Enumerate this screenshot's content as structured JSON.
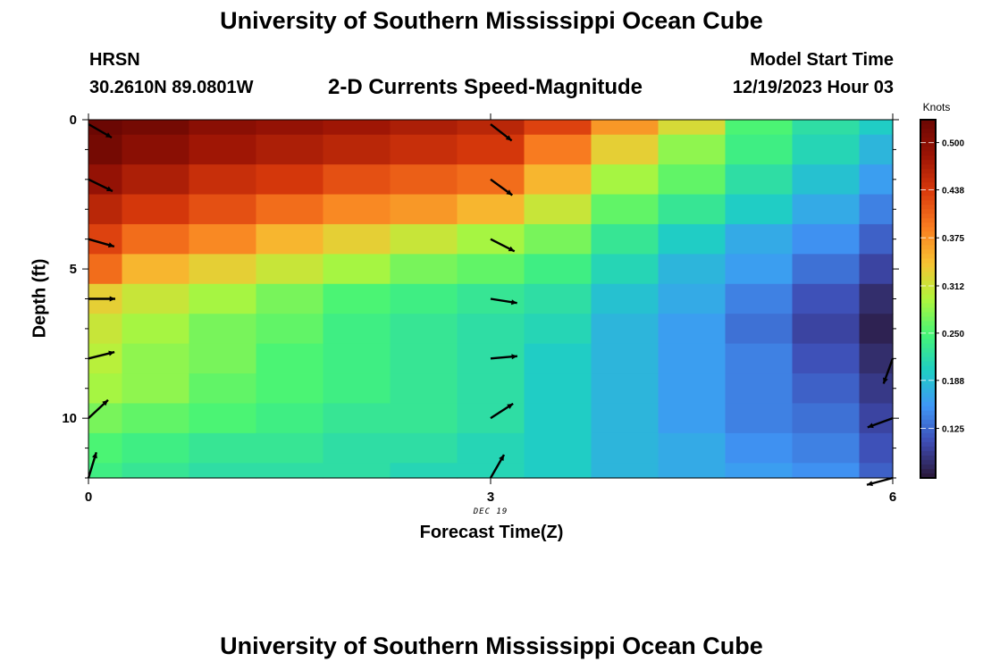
{
  "header": {
    "title": "University of Southern Mississippi Ocean Cube",
    "station": "HRSN",
    "coords": "30.2610N  89.0801W",
    "plot_title": "2-D Currents Speed-Magnitude",
    "model_label": "Model Start Time",
    "model_time": "12/19/2023 Hour 03"
  },
  "footer": {
    "title": "University of Southern Mississippi Ocean Cube"
  },
  "chart_data": {
    "type": "heatmap",
    "title": "2-D Currents Speed-Magnitude",
    "xlabel": "Forecast Time(Z)",
    "ylabel": "Depth (ft)",
    "x_secondary_label": "DEC 19",
    "xlim": [
      0,
      6
    ],
    "ylim": [
      12,
      0
    ],
    "xticks": [
      0,
      3,
      6
    ],
    "yticks": [
      0,
      5,
      10
    ],
    "x": [
      0,
      0.5,
      1,
      1.5,
      2,
      2.5,
      3,
      3.5,
      4,
      4.5,
      5,
      5.5,
      6
    ],
    "y": [
      0,
      1,
      2,
      3,
      4,
      5,
      6,
      7,
      8,
      9,
      10,
      11,
      12
    ],
    "z": [
      [
        0.54,
        0.52,
        0.5,
        0.49,
        0.48,
        0.47,
        0.46,
        0.43,
        0.37,
        0.32,
        0.25,
        0.22,
        0.2
      ],
      [
        0.52,
        0.5,
        0.48,
        0.47,
        0.46,
        0.45,
        0.44,
        0.39,
        0.33,
        0.28,
        0.24,
        0.21,
        0.18
      ],
      [
        0.49,
        0.47,
        0.45,
        0.44,
        0.42,
        0.41,
        0.4,
        0.35,
        0.29,
        0.26,
        0.22,
        0.19,
        0.16
      ],
      [
        0.46,
        0.44,
        0.42,
        0.4,
        0.38,
        0.37,
        0.35,
        0.31,
        0.26,
        0.23,
        0.2,
        0.17,
        0.14
      ],
      [
        0.43,
        0.4,
        0.38,
        0.35,
        0.33,
        0.31,
        0.29,
        0.27,
        0.23,
        0.2,
        0.17,
        0.15,
        0.12
      ],
      [
        0.4,
        0.35,
        0.33,
        0.31,
        0.29,
        0.27,
        0.26,
        0.24,
        0.21,
        0.18,
        0.16,
        0.13,
        0.1
      ],
      [
        0.33,
        0.31,
        0.29,
        0.27,
        0.25,
        0.24,
        0.23,
        0.22,
        0.19,
        0.17,
        0.14,
        0.11,
        0.08
      ],
      [
        0.31,
        0.29,
        0.27,
        0.26,
        0.24,
        0.23,
        0.22,
        0.21,
        0.18,
        0.16,
        0.13,
        0.1,
        0.07
      ],
      [
        0.3,
        0.28,
        0.27,
        0.25,
        0.24,
        0.23,
        0.22,
        0.2,
        0.18,
        0.16,
        0.14,
        0.11,
        0.08
      ],
      [
        0.29,
        0.28,
        0.26,
        0.25,
        0.24,
        0.23,
        0.22,
        0.2,
        0.18,
        0.16,
        0.14,
        0.12,
        0.09
      ],
      [
        0.27,
        0.26,
        0.25,
        0.24,
        0.23,
        0.23,
        0.22,
        0.2,
        0.18,
        0.16,
        0.14,
        0.13,
        0.1
      ],
      [
        0.25,
        0.24,
        0.23,
        0.23,
        0.22,
        0.22,
        0.21,
        0.2,
        0.18,
        0.17,
        0.15,
        0.14,
        0.11
      ],
      [
        0.24,
        0.23,
        0.22,
        0.22,
        0.22,
        0.21,
        0.21,
        0.2,
        0.18,
        0.17,
        0.16,
        0.15,
        0.12
      ]
    ],
    "vectors": [
      {
        "x": 0,
        "y": 0.15,
        "dir": 30
      },
      {
        "x": 0,
        "y": 2.0,
        "dir": 26
      },
      {
        "x": 0,
        "y": 4.0,
        "dir": 16
      },
      {
        "x": 0,
        "y": 6.0,
        "dir": 0
      },
      {
        "x": 0,
        "y": 8.0,
        "dir": -14
      },
      {
        "x": 0,
        "y": 10.0,
        "dir": -43
      },
      {
        "x": 0,
        "y": 12.0,
        "dir": -73
      },
      {
        "x": 3,
        "y": 0.15,
        "dir": 38
      },
      {
        "x": 3,
        "y": 2.0,
        "dir": 36
      },
      {
        "x": 3,
        "y": 4.0,
        "dir": 27
      },
      {
        "x": 3,
        "y": 6.0,
        "dir": 9
      },
      {
        "x": 3,
        "y": 8.0,
        "dir": -5
      },
      {
        "x": 3,
        "y": 10.0,
        "dir": -33
      },
      {
        "x": 3,
        "y": 12.0,
        "dir": -60
      },
      {
        "x": 6,
        "y": 8.0,
        "dir": 110
      },
      {
        "x": 6,
        "y": 10.0,
        "dir": 160
      },
      {
        "x": 6,
        "y": 12.0,
        "dir": 165
      }
    ],
    "colorbar": {
      "label": "Knots",
      "range": [
        0.06,
        0.53
      ],
      "ticks": [
        "0.125",
        "0.188",
        "0.250",
        "0.312",
        "0.375",
        "0.438",
        "0.500"
      ],
      "colors": [
        "#2a1737",
        "#3e4cb4",
        "#3f97f7",
        "#1fcec4",
        "#46f476",
        "#b1f53c",
        "#f7c232",
        "#f97c20",
        "#d93a0c",
        "#9b1405",
        "#6b0703"
      ]
    }
  }
}
